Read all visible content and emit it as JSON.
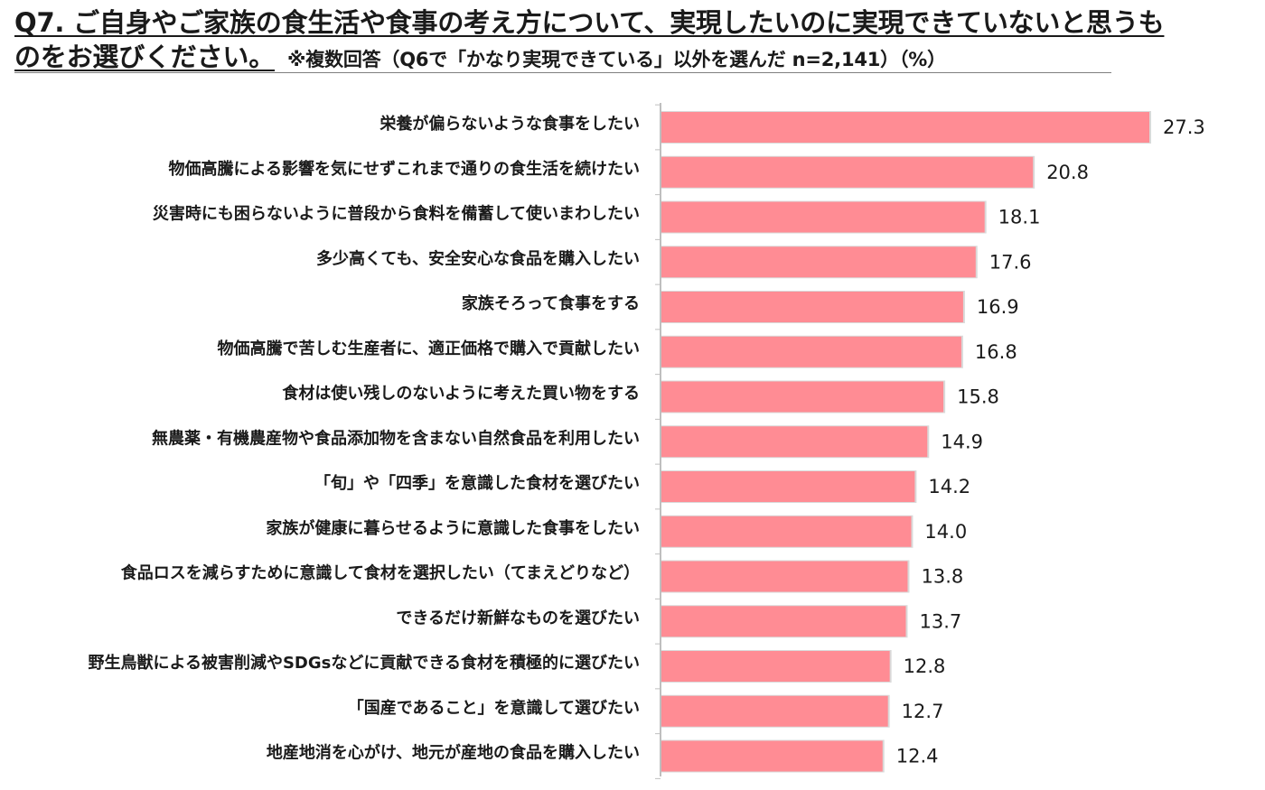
{
  "title": {
    "line1": "Q7. ご自身やご家族の食生活や食事の考え方について、実現したいのに実現できていないと思うも",
    "line2": "のをお選びください。",
    "note": "※複数回答（Q6で「かなり実現できている」以外を選んだ n=2,141）（%）"
  },
  "chart_data": {
    "type": "bar",
    "orientation": "horizontal",
    "categories": [
      "栄養が偏らないような食事をしたい",
      "物価高騰による影響を気にせずこれまで通りの食生活を続けたい",
      "災害時にも困らないように普段から食料を備蓄して使いまわしたい",
      "多少高くても、安全安心な食品を購入したい",
      "家族そろって食事をする",
      "物価高騰で苦しむ生産者に、適正価格で購入で貢献したい",
      "食材は使い残しのないように考えた買い物をする",
      "無農薬・有機農産物や食品添加物を含まない自然食品を利用したい",
      "「旬」や「四季」を意識した食材を選びたい",
      "家族が健康に暮らせるように意識した食事をしたい",
      "食品ロスを減らすために意識して食材を選択したい（てまえどりなど）",
      "できるだけ新鮮なものを選びたい",
      "野生鳥獣による被害削減やSDGsなどに貢献できる食材を積極的に選びたい",
      "「国産であること」を意識して選びたい",
      "地産地消を心がけ、地元が産地の食品を購入したい"
    ],
    "values": [
      27.3,
      20.8,
      18.1,
      17.6,
      16.9,
      16.8,
      15.8,
      14.9,
      14.2,
      14.0,
      13.8,
      13.7,
      12.8,
      12.7,
      12.4
    ],
    "value_labels": [
      "27.3",
      "20.8",
      "18.1",
      "17.6",
      "16.9",
      "16.8",
      "15.8",
      "14.9",
      "14.2",
      "14.0",
      "13.8",
      "13.7",
      "12.8",
      "12.7",
      "12.4"
    ],
    "bar_color": "#ff8c94",
    "bar_edge_color": "#d9d9d9",
    "axis_color": "#bfbfbf",
    "grid": false,
    "xlim": [
      0,
      27.3
    ]
  }
}
